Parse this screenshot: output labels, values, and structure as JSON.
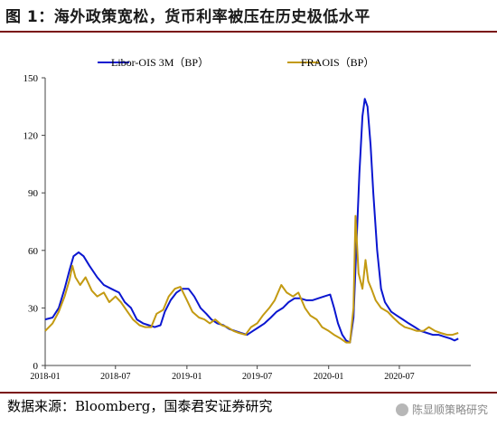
{
  "header": {
    "title": "图 1：海外政策宽松，货币利率被压在历史极低水平"
  },
  "footer": {
    "source": "数据来源：Bloomberg，国泰君安证券研究",
    "watermark": "陈显顺策略研究",
    "watermark_icon": "wechat-icon"
  },
  "colors": {
    "rule": "#7a1212",
    "libor": "#0a16d0",
    "fraois": "#c39a12"
  },
  "chart_data": {
    "type": "line",
    "title": "",
    "xlabel": "",
    "ylabel": "",
    "ylim": [
      0,
      150
    ],
    "yticks": [
      0,
      30,
      60,
      90,
      120,
      150
    ],
    "xticks": [
      "2018-01",
      "2018-07",
      "2019-01",
      "2019-07",
      "2020-01",
      "2020-07"
    ],
    "xrange": [
      "2018-01",
      "2020-12"
    ],
    "grid": false,
    "legend": "top",
    "series": [
      {
        "name": "Libor-OIS 3M（BP）",
        "color": "#0a16d0",
        "points": [
          [
            "2018-01-01",
            24
          ],
          [
            "2018-01-20",
            25
          ],
          [
            "2018-02-05",
            30
          ],
          [
            "2018-02-20",
            40
          ],
          [
            "2018-03-05",
            50
          ],
          [
            "2018-03-15",
            57
          ],
          [
            "2018-03-28",
            59
          ],
          [
            "2018-04-10",
            57
          ],
          [
            "2018-04-25",
            52
          ],
          [
            "2018-05-15",
            46
          ],
          [
            "2018-06-01",
            42
          ],
          [
            "2018-06-20",
            40
          ],
          [
            "2018-07-10",
            38
          ],
          [
            "2018-07-25",
            33
          ],
          [
            "2018-08-10",
            30
          ],
          [
            "2018-08-25",
            24
          ],
          [
            "2018-09-10",
            22
          ],
          [
            "2018-09-25",
            21
          ],
          [
            "2018-10-10",
            20
          ],
          [
            "2018-10-25",
            21
          ],
          [
            "2018-11-05",
            28
          ],
          [
            "2018-11-20",
            34
          ],
          [
            "2018-12-05",
            38
          ],
          [
            "2018-12-20",
            40
          ],
          [
            "2019-01-05",
            40
          ],
          [
            "2019-01-20",
            36
          ],
          [
            "2019-02-05",
            30
          ],
          [
            "2019-02-20",
            27
          ],
          [
            "2019-03-05",
            24
          ],
          [
            "2019-03-20",
            22
          ],
          [
            "2019-04-05",
            21
          ],
          [
            "2019-04-20",
            19
          ],
          [
            "2019-05-05",
            18
          ],
          [
            "2019-05-20",
            17
          ],
          [
            "2019-06-05",
            16
          ],
          [
            "2019-06-20",
            18
          ],
          [
            "2019-07-05",
            20
          ],
          [
            "2019-07-20",
            22
          ],
          [
            "2019-08-05",
            25
          ],
          [
            "2019-08-20",
            28
          ],
          [
            "2019-09-05",
            30
          ],
          [
            "2019-09-20",
            33
          ],
          [
            "2019-10-05",
            35
          ],
          [
            "2019-10-20",
            35
          ],
          [
            "2019-11-05",
            34
          ],
          [
            "2019-11-20",
            34
          ],
          [
            "2019-12-05",
            35
          ],
          [
            "2019-12-20",
            36
          ],
          [
            "2020-01-05",
            37
          ],
          [
            "2020-01-15",
            30
          ],
          [
            "2020-01-25",
            22
          ],
          [
            "2020-02-05",
            16
          ],
          [
            "2020-02-15",
            13
          ],
          [
            "2020-02-25",
            12
          ],
          [
            "2020-03-05",
            25
          ],
          [
            "2020-03-12",
            60
          ],
          [
            "2020-03-20",
            100
          ],
          [
            "2020-03-28",
            130
          ],
          [
            "2020-04-03",
            139
          ],
          [
            "2020-04-10",
            135
          ],
          [
            "2020-04-18",
            115
          ],
          [
            "2020-04-25",
            90
          ],
          [
            "2020-05-05",
            60
          ],
          [
            "2020-05-15",
            40
          ],
          [
            "2020-05-25",
            33
          ],
          [
            "2020-06-10",
            28
          ],
          [
            "2020-06-25",
            26
          ],
          [
            "2020-07-10",
            24
          ],
          [
            "2020-07-25",
            22
          ],
          [
            "2020-08-10",
            20
          ],
          [
            "2020-08-25",
            18
          ],
          [
            "2020-09-10",
            17
          ],
          [
            "2020-09-25",
            16
          ],
          [
            "2020-10-10",
            16
          ],
          [
            "2020-10-25",
            15
          ],
          [
            "2020-11-10",
            14
          ],
          [
            "2020-11-20",
            13
          ],
          [
            "2020-11-30",
            14
          ]
        ]
      },
      {
        "name": "FRAOIS（BP）",
        "color": "#c39a12",
        "points": [
          [
            "2018-01-01",
            18
          ],
          [
            "2018-01-20",
            22
          ],
          [
            "2018-02-05",
            28
          ],
          [
            "2018-02-20",
            36
          ],
          [
            "2018-03-05",
            45
          ],
          [
            "2018-03-12",
            52
          ],
          [
            "2018-03-20",
            46
          ],
          [
            "2018-04-01",
            42
          ],
          [
            "2018-04-15",
            46
          ],
          [
            "2018-05-01",
            39
          ],
          [
            "2018-05-15",
            36
          ],
          [
            "2018-06-01",
            38
          ],
          [
            "2018-06-15",
            33
          ],
          [
            "2018-07-01",
            36
          ],
          [
            "2018-07-15",
            33
          ],
          [
            "2018-08-01",
            28
          ],
          [
            "2018-08-15",
            24
          ],
          [
            "2018-09-01",
            21
          ],
          [
            "2018-09-15",
            20
          ],
          [
            "2018-10-01",
            20
          ],
          [
            "2018-10-15",
            27
          ],
          [
            "2018-11-01",
            29
          ],
          [
            "2018-11-15",
            36
          ],
          [
            "2018-12-01",
            40
          ],
          [
            "2018-12-15",
            41
          ],
          [
            "2019-01-01",
            34
          ],
          [
            "2019-01-15",
            28
          ],
          [
            "2019-02-01",
            25
          ],
          [
            "2019-02-15",
            24
          ],
          [
            "2019-03-01",
            22
          ],
          [
            "2019-03-15",
            24
          ],
          [
            "2019-04-01",
            21
          ],
          [
            "2019-04-15",
            20
          ],
          [
            "2019-05-01",
            18
          ],
          [
            "2019-05-15",
            17
          ],
          [
            "2019-06-01",
            16
          ],
          [
            "2019-06-15",
            20
          ],
          [
            "2019-07-01",
            22
          ],
          [
            "2019-07-15",
            26
          ],
          [
            "2019-08-01",
            30
          ],
          [
            "2019-08-15",
            34
          ],
          [
            "2019-09-01",
            42
          ],
          [
            "2019-09-15",
            38
          ],
          [
            "2019-10-01",
            36
          ],
          [
            "2019-10-15",
            38
          ],
          [
            "2019-11-01",
            30
          ],
          [
            "2019-11-15",
            26
          ],
          [
            "2019-12-01",
            24
          ],
          [
            "2019-12-15",
            20
          ],
          [
            "2020-01-01",
            18
          ],
          [
            "2020-01-15",
            16
          ],
          [
            "2020-02-01",
            14
          ],
          [
            "2020-02-15",
            12
          ],
          [
            "2020-02-25",
            12
          ],
          [
            "2020-03-05",
            30
          ],
          [
            "2020-03-10",
            78
          ],
          [
            "2020-03-18",
            48
          ],
          [
            "2020-03-28",
            40
          ],
          [
            "2020-04-05",
            55
          ],
          [
            "2020-04-12",
            44
          ],
          [
            "2020-04-20",
            40
          ],
          [
            "2020-05-01",
            34
          ],
          [
            "2020-05-15",
            30
          ],
          [
            "2020-06-01",
            28
          ],
          [
            "2020-06-15",
            25
          ],
          [
            "2020-07-01",
            22
          ],
          [
            "2020-07-15",
            20
          ],
          [
            "2020-08-01",
            19
          ],
          [
            "2020-08-15",
            18
          ],
          [
            "2020-09-01",
            18
          ],
          [
            "2020-09-15",
            20
          ],
          [
            "2020-10-01",
            18
          ],
          [
            "2020-10-15",
            17
          ],
          [
            "2020-11-01",
            16
          ],
          [
            "2020-11-15",
            16
          ],
          [
            "2020-11-30",
            17
          ]
        ]
      }
    ]
  }
}
